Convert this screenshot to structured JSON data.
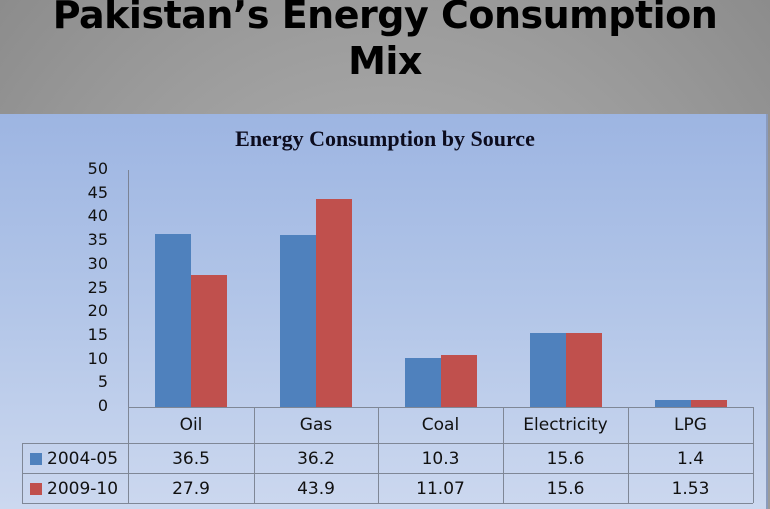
{
  "slide": {
    "title_line1": "Pakistan’s Energy Consumption",
    "title_line2": "Mix"
  },
  "chart_data": {
    "type": "bar",
    "title": "Energy Consumption by Source",
    "categories": [
      "Oil",
      "Gas",
      "Coal",
      "Electricity",
      "LPG"
    ],
    "series": [
      {
        "name": "2004-05",
        "color": "#4f81bd",
        "values": [
          36.5,
          36.2,
          10.3,
          15.6,
          1.4
        ],
        "labels": [
          "36.5",
          "36.2",
          "10.3",
          "15.6",
          "1.4"
        ]
      },
      {
        "name": "2009-10",
        "color": "#c0504d",
        "values": [
          27.9,
          43.9,
          11.07,
          15.6,
          1.53
        ],
        "labels": [
          "27.9",
          "43.9",
          "11.07",
          "15.6",
          "1.53"
        ]
      }
    ],
    "ylim": [
      0,
      50
    ],
    "yticks": [
      "0",
      "5",
      "10",
      "15",
      "20",
      "25",
      "30",
      "35",
      "40",
      "45",
      "50"
    ],
    "xlabel": "",
    "ylabel": "",
    "grid": false,
    "legend_position": "data-table"
  }
}
